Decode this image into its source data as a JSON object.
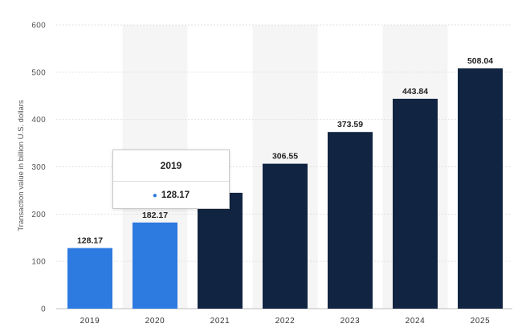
{
  "chart_data": {
    "type": "bar",
    "categories": [
      "2019",
      "2020",
      "2021",
      "2022",
      "2023",
      "2024",
      "2025"
    ],
    "values": [
      128.17,
      182.17,
      245,
      306.55,
      373.59,
      443.84,
      508.04
    ],
    "data_labels": [
      "128.17",
      "182.17",
      "",
      "306.55",
      "373.59",
      "443.84",
      "508.04"
    ],
    "ylabel": "Transaction value in billion U.S. dollars",
    "ylim": [
      0,
      600
    ],
    "yticks": [
      0,
      100,
      200,
      300,
      400,
      500,
      600
    ],
    "grid": true,
    "bar_colors": [
      "#2d7ae0",
      "#2d7ae0",
      "#112542",
      "#112542",
      "#112542",
      "#112542",
      "#112542"
    ],
    "band_color": "#f5f5f5",
    "gridline_color": "#e2e2e2",
    "tooltip": {
      "title": "2019",
      "value": "128.17",
      "dot_color": "#2d7ae0"
    }
  }
}
